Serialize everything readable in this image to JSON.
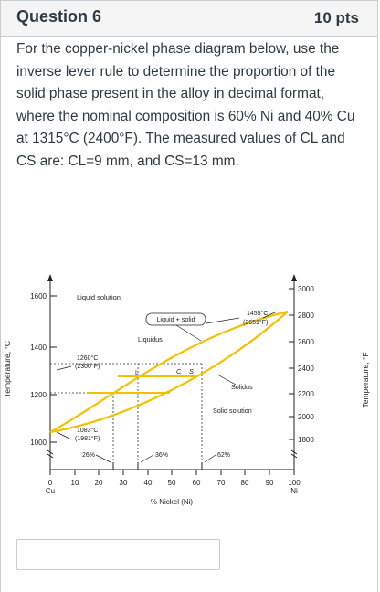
{
  "question": {
    "title": "Question 6",
    "points": "10 pts",
    "text": "For the copper-nickel phase diagram below, use the inverse lever rule to determine the proportion of the solid phase present in the alloy in decimal format, where the nominal composition is 60% Ni and 40% Cu at 1315°C (2400°F). The measured values of CL and CS are: CL=9 mm, and CS=13 mm."
  },
  "diagram": {
    "left_axis_label": "Temperature, °C",
    "right_axis_label": "Temperature, °F",
    "x_axis_label": "% Nickel (Ni)",
    "x_ticks": [
      "0",
      "10",
      "20",
      "30",
      "40",
      "50",
      "60",
      "70",
      "80",
      "90",
      "100"
    ],
    "left_ticks": [
      "1600",
      "1400",
      "1200",
      "1000"
    ],
    "right_ticks": [
      "3000",
      "2800",
      "2600",
      "2400",
      "2200",
      "2000",
      "1800"
    ],
    "cu_label": "Cu",
    "ni_label": "Ni",
    "region_liquid": "Liquid solution",
    "region_two_phase": "Liquid + solid",
    "region_solid": "Solid solution",
    "liquidus_label": "Liquidus",
    "solidus_label": "Solidus",
    "ni_melt_c": "1455°C",
    "ni_melt_f": "(2651°F)",
    "tie_c": "1260°C",
    "tie_f": "(2300°F)",
    "cu_melt_c": "1083°C",
    "cu_melt_f": "(1981°F)",
    "pct_26": "26%",
    "pct_36": "36%",
    "pct_62": "62%",
    "lever_L": "L",
    "lever_C": "C",
    "lever_S": "S",
    "colors": {
      "phase_curve": "#f2c200",
      "axis": "#222222"
    }
  },
  "answer": {
    "value": ""
  }
}
